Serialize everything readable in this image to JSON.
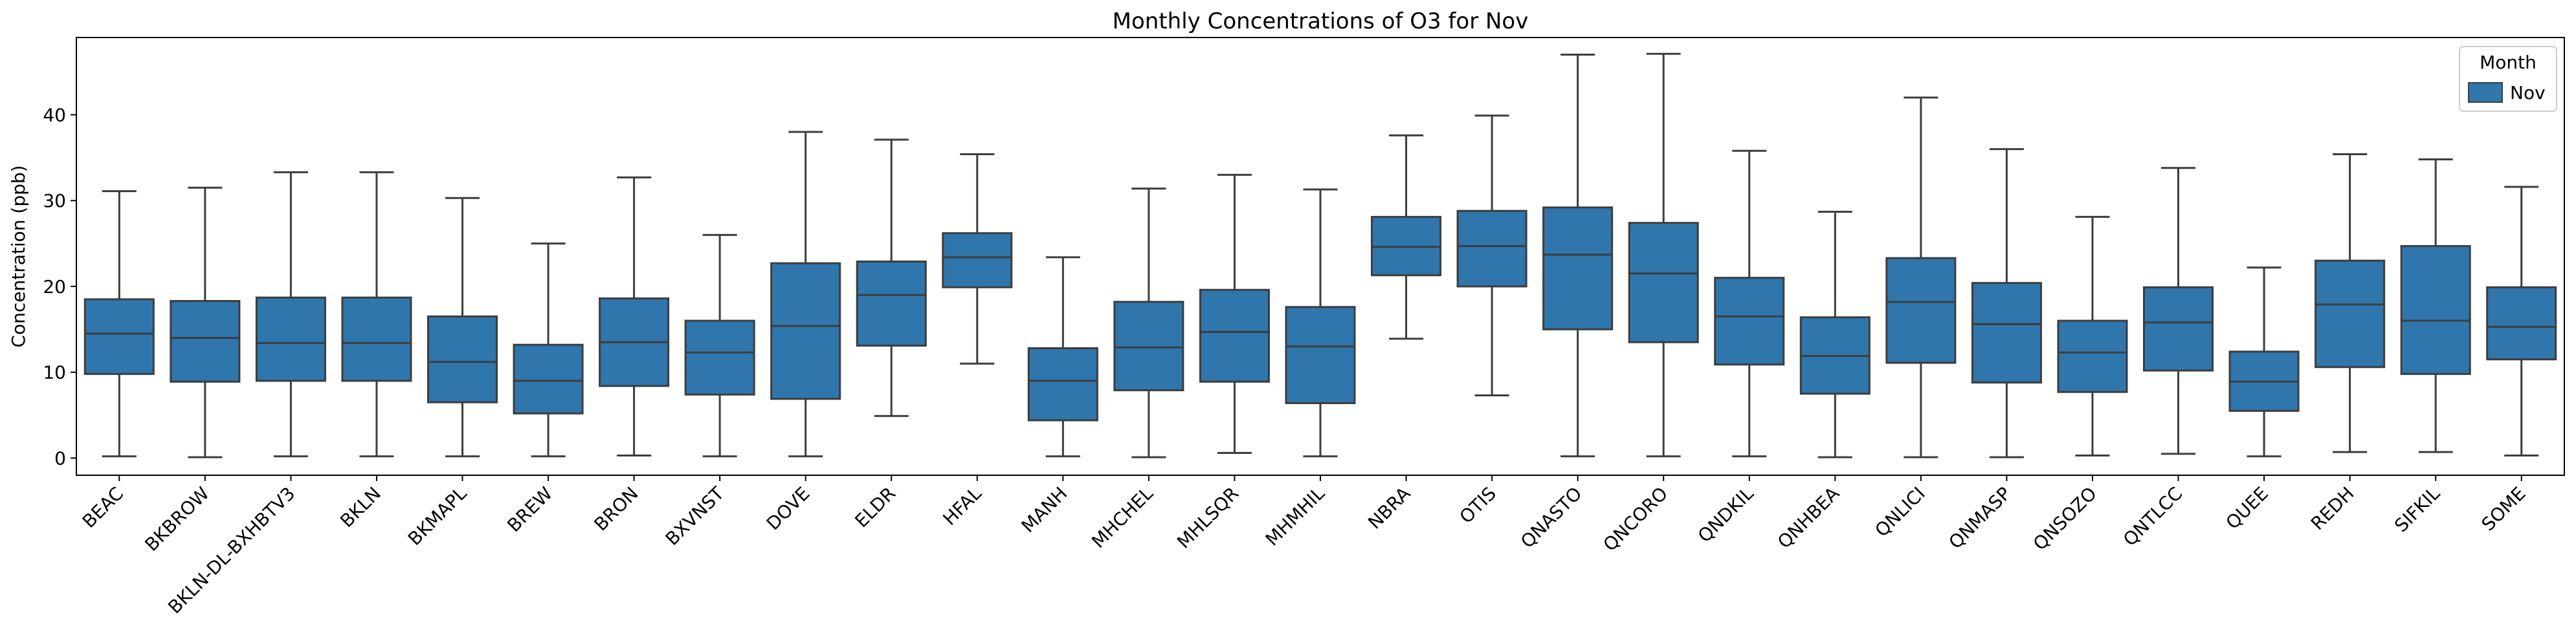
{
  "chart_data": {
    "type": "box",
    "title": "Monthly Concentrations of O3 for Nov",
    "ylabel": "Concentration (ppb)",
    "xlabel": "",
    "ylim": [
      -2,
      49
    ],
    "yticks": [
      0,
      10,
      20,
      30,
      40
    ],
    "grid": false,
    "legend": {
      "title": "Month",
      "placement": "top-right",
      "entries": [
        "Nov"
      ]
    },
    "series": [
      {
        "name": "Nov",
        "color": "#2f76ad"
      }
    ],
    "categories": [
      "BEAC",
      "BKBROW",
      "BKLN-DL-BXHBTV3",
      "BKLN",
      "BKMAPL",
      "BREW",
      "BRON",
      "BXVNST",
      "DOVE",
      "ELDR",
      "HFAL",
      "MANH",
      "MHCHEL",
      "MHLSQR",
      "MHMHIL",
      "NBRA",
      "OTIS",
      "QNASTO",
      "QNCORO",
      "QNDKIL",
      "QNHBEA",
      "QNLICI",
      "QNMASP",
      "QNSOZO",
      "QNTLCC",
      "QUEE",
      "REDH",
      "SIFKIL",
      "SOME"
    ],
    "boxes": [
      {
        "min": 0.2,
        "q1": 9.8,
        "median": 14.5,
        "q3": 18.5,
        "max": 31.1
      },
      {
        "min": 0.1,
        "q1": 8.9,
        "median": 14.0,
        "q3": 18.3,
        "max": 31.5
      },
      {
        "min": 0.2,
        "q1": 9.0,
        "median": 13.4,
        "q3": 18.7,
        "max": 33.3
      },
      {
        "min": 0.2,
        "q1": 9.0,
        "median": 13.4,
        "q3": 18.7,
        "max": 33.3
      },
      {
        "min": 0.2,
        "q1": 6.5,
        "median": 11.2,
        "q3": 16.5,
        "max": 30.3
      },
      {
        "min": 0.2,
        "q1": 5.2,
        "median": 9.0,
        "q3": 13.2,
        "max": 25.0
      },
      {
        "min": 0.3,
        "q1": 8.4,
        "median": 13.5,
        "q3": 18.6,
        "max": 32.7
      },
      {
        "min": 0.2,
        "q1": 7.4,
        "median": 12.3,
        "q3": 16.0,
        "max": 26.0
      },
      {
        "min": 0.2,
        "q1": 6.9,
        "median": 15.4,
        "q3": 22.7,
        "max": 38.0
      },
      {
        "min": 4.9,
        "q1": 13.1,
        "median": 19.0,
        "q3": 22.9,
        "max": 37.1
      },
      {
        "min": 11.0,
        "q1": 19.9,
        "median": 23.4,
        "q3": 26.2,
        "max": 35.4
      },
      {
        "min": 0.2,
        "q1": 4.4,
        "median": 9.0,
        "q3": 12.8,
        "max": 23.4
      },
      {
        "min": 0.1,
        "q1": 7.9,
        "median": 12.9,
        "q3": 18.2,
        "max": 31.4
      },
      {
        "min": 0.6,
        "q1": 8.9,
        "median": 14.7,
        "q3": 19.6,
        "max": 33.0
      },
      {
        "min": 0.2,
        "q1": 6.4,
        "median": 13.0,
        "q3": 17.6,
        "max": 31.3
      },
      {
        "min": 13.9,
        "q1": 21.3,
        "median": 24.6,
        "q3": 28.1,
        "max": 37.6
      },
      {
        "min": 7.3,
        "q1": 20.0,
        "median": 24.7,
        "q3": 28.8,
        "max": 39.9
      },
      {
        "min": 0.2,
        "q1": 15.0,
        "median": 23.7,
        "q3": 29.2,
        "max": 47.0
      },
      {
        "min": 0.2,
        "q1": 13.5,
        "median": 21.5,
        "q3": 27.4,
        "max": 47.1
      },
      {
        "min": 0.2,
        "q1": 10.9,
        "median": 16.5,
        "q3": 21.0,
        "max": 35.8
      },
      {
        "min": 0.1,
        "q1": 7.5,
        "median": 11.9,
        "q3": 16.4,
        "max": 28.7
      },
      {
        "min": 0.1,
        "q1": 11.1,
        "median": 18.2,
        "q3": 23.3,
        "max": 42.0
      },
      {
        "min": 0.1,
        "q1": 8.8,
        "median": 15.6,
        "q3": 20.4,
        "max": 36.0
      },
      {
        "min": 0.3,
        "q1": 7.7,
        "median": 12.3,
        "q3": 16.0,
        "max": 28.1
      },
      {
        "min": 0.5,
        "q1": 10.2,
        "median": 15.8,
        "q3": 19.9,
        "max": 33.8
      },
      {
        "min": 0.2,
        "q1": 5.5,
        "median": 8.9,
        "q3": 12.4,
        "max": 22.2
      },
      {
        "min": 0.7,
        "q1": 10.6,
        "median": 17.9,
        "q3": 23.0,
        "max": 35.4
      },
      {
        "min": 0.7,
        "q1": 9.8,
        "median": 16.0,
        "q3": 24.7,
        "max": 34.8
      },
      {
        "min": 0.3,
        "q1": 11.5,
        "median": 15.3,
        "q3": 19.9,
        "max": 31.6
      }
    ]
  }
}
